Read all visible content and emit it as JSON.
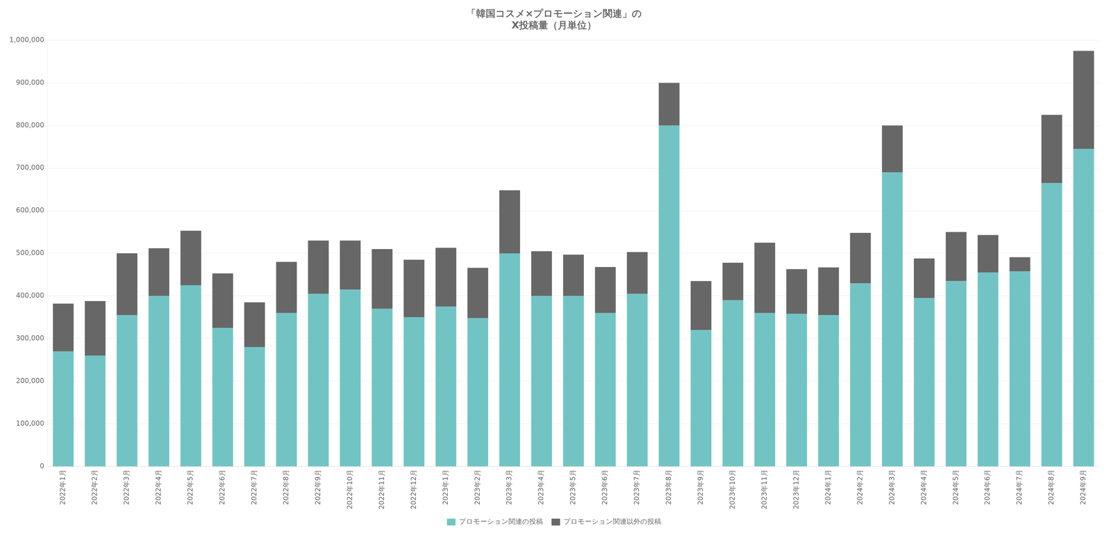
{
  "chart_data": {
    "type": "bar",
    "title": "「韓国コスメ×プロモーション関連」の\nX投稿量（月単位）",
    "categories": [
      "2022年1月",
      "2022年2月",
      "2022年3月",
      "2022年4月",
      "2022年5月",
      "2022年6月",
      "2022年7月",
      "2022年8月",
      "2022年9月",
      "2022年10月",
      "2022年11月",
      "2022年12月",
      "2023年1月",
      "2023年2月",
      "2023年3月",
      "2023年4月",
      "2023年5月",
      "2023年6月",
      "2023年7月",
      "2023年8月",
      "2023年9月",
      "2023年10月",
      "2023年11月",
      "2023年12月",
      "2024年1月",
      "2024年2月",
      "2024年3月",
      "2024年4月",
      "2024年5月",
      "2024年6月",
      "2024年7月",
      "2024年8月",
      "2024年9月"
    ],
    "series": [
      {
        "name": "プロモーション関連の投稿",
        "color": "#72c4c4",
        "values": [
          270000,
          260000,
          355000,
          400000,
          425000,
          325000,
          280000,
          360000,
          405000,
          415000,
          370000,
          350000,
          375000,
          348000,
          500000,
          400000,
          400000,
          360000,
          405000,
          800000,
          320000,
          390000,
          360000,
          358000,
          355000,
          430000,
          690000,
          395000,
          435000,
          455000,
          458000,
          665000,
          745000
        ]
      },
      {
        "name": "プロモーション関連以外の投稿",
        "color": "#676767",
        "values": [
          112000,
          128000,
          145000,
          112000,
          128000,
          128000,
          105000,
          120000,
          125000,
          115000,
          140000,
          135000,
          138000,
          118000,
          148000,
          105000,
          97000,
          108000,
          98000,
          100000,
          115000,
          88000,
          165000,
          105000,
          112000,
          118000,
          110000,
          93000,
          115000,
          88000,
          33000,
          160000,
          230000
        ]
      }
    ],
    "stacked": true,
    "ylim": [
      0,
      1000000
    ],
    "yticks": [
      0,
      {
        "value": 100000,
        "label": "100,000"
      },
      {
        "value": 200000,
        "label": "200,000"
      },
      {
        "value": 300000,
        "label": "300,000"
      },
      {
        "value": 400000,
        "label": "400,000"
      },
      {
        "value": 500000,
        "label": "500,000"
      },
      {
        "value": 600000,
        "label": "600,000"
      },
      {
        "value": 700000,
        "label": "700,000"
      },
      {
        "value": 800000,
        "label": "800,000"
      },
      {
        "value": 900000,
        "label": "900,000"
      },
      {
        "value": 1000000,
        "label": "1,000,000"
      }
    ],
    "grid": true,
    "legend": "bottom"
  }
}
